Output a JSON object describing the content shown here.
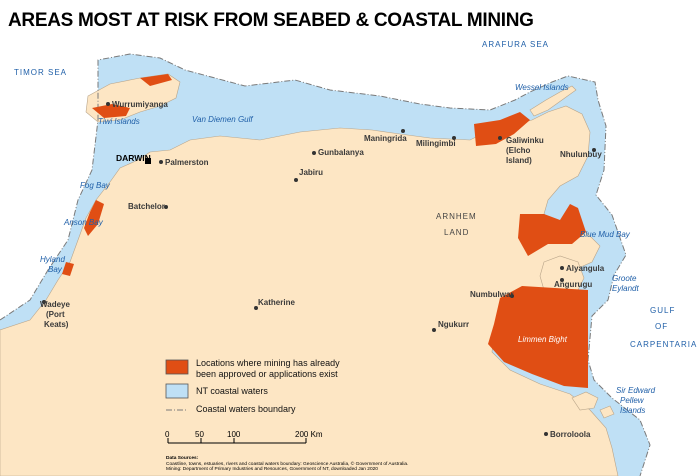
{
  "title": "AREAS MOST AT RISK FROM SEABED & COASTAL MINING",
  "colors": {
    "sea": "#ffffff",
    "land": "#fde6c4",
    "coastal_waters": "#bfe0f5",
    "mining": "#e04e14",
    "boundary": "#7a7a7a"
  },
  "seas": {
    "timor": "TIMOR SEA",
    "arafura": "ARAFURA SEA",
    "gulf_line1": "GULF",
    "gulf_line2": "OF",
    "gulf_line3": "CARPENTARIA"
  },
  "water_features": {
    "van_diemen_gulf": "Van Diemen Gulf",
    "fog_bay": "Fog Bay",
    "anson_bay": "Anson Bay",
    "hyland_bay_line1": "Hyland",
    "hyland_bay_line2": "Bay",
    "blue_mud_bay": "Blue Mud Bay",
    "limmen_bight": "Limmen Bight"
  },
  "islands": {
    "tiwi": "Tiwi Islands",
    "wessel": "Wessel Islands",
    "groote_line1": "Groote",
    "groote_line2": "Eylandt",
    "sir_edward_line1": "Sir Edward",
    "sir_edward_line2": "Pellew",
    "sir_edward_line3": "Islands"
  },
  "places": {
    "darwin": "DARWIN",
    "palmerston": "Palmerston",
    "wurrumiyanga": "Wurrumiyanga",
    "batchelor": "Batchelor",
    "gunbalanya": "Gunbalanya",
    "jabiru": "Jabiru",
    "maningrida": "Maningrida",
    "milingimbi": "Milingimbi",
    "galiwinku_line1": "Galiwinku",
    "galiwinku_line2": "(Elcho",
    "galiwinku_line3": "Island)",
    "nhulunbuy": "Nhulunbuy",
    "alyangula": "Alyangula",
    "angurugu": "Angurugu",
    "numbulwar": "Numbulwar",
    "ngukurr": "Ngukurr",
    "katherine": "Katherine",
    "wadeye_line1": "Wadeye",
    "wadeye_line2": "(Port",
    "wadeye_line3": "Keats)",
    "borroloola": "Borroloola"
  },
  "regions": {
    "arnhem_line1": "ARNHEM",
    "arnhem_line2": "LAND"
  },
  "legend": {
    "mining_line1": "Locations where mining has already",
    "mining_line2": "been approved or applications exist",
    "coastal": "NT coastal waters",
    "boundary": "Coastal waters boundary"
  },
  "scale": {
    "ticks": [
      "0",
      "50",
      "100",
      "200 Km"
    ]
  },
  "sources": {
    "heading": "Data Sources:",
    "line1": "Coastline, towns, estuaries, rivers and coastal waters boundary: Geoscience Australia, © Government of Australia.",
    "line2": "Mining: Department of Primary Industries and Resources, Government of NT, downloaded Jan 2020"
  }
}
